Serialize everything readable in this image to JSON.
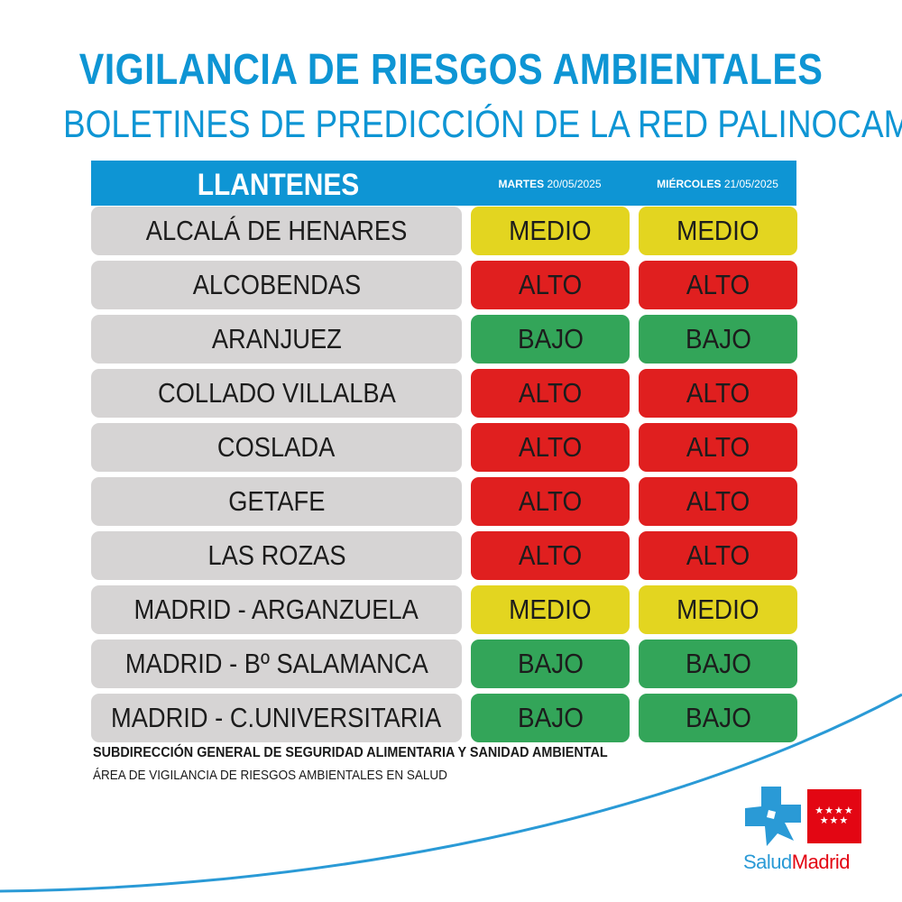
{
  "header": {
    "title": "VIGILANCIA DE RIESGOS AMBIENTALES",
    "subtitle": "BOLETINES DE PREDICCIÓN DE LA RED PALINOCAM"
  },
  "table": {
    "pollen_type": "LLANTENES",
    "day1_name": "MARTES",
    "day1_date": "20/05/2025",
    "day2_name": "MIÉRCOLES",
    "day2_date": "21/05/2025",
    "rows": [
      {
        "station": "ALCALÁ DE HENARES",
        "day1": "MEDIO",
        "day2": "MEDIO"
      },
      {
        "station": "ALCOBENDAS",
        "day1": "ALTO",
        "day2": "ALTO"
      },
      {
        "station": "ARANJUEZ",
        "day1": "BAJO",
        "day2": "BAJO"
      },
      {
        "station": "COLLADO VILLALBA",
        "day1": "ALTO",
        "day2": "ALTO"
      },
      {
        "station": "COSLADA",
        "day1": "ALTO",
        "day2": "ALTO"
      },
      {
        "station": "GETAFE",
        "day1": "ALTO",
        "day2": "ALTO"
      },
      {
        "station": "LAS ROZAS",
        "day1": "ALTO",
        "day2": "ALTO"
      },
      {
        "station": "MADRID - ARGANZUELA",
        "day1": "MEDIO",
        "day2": "MEDIO"
      },
      {
        "station": "MADRID - Bº SALAMANCA",
        "day1": "BAJO",
        "day2": "BAJO"
      },
      {
        "station": "MADRID - C.UNIVERSITARIA",
        "day1": "BAJO",
        "day2": "BAJO"
      }
    ]
  },
  "level_colors": {
    "BAJO": "#33a559",
    "MEDIO": "#e3d520",
    "ALTO": "#e01f1f"
  },
  "footer": {
    "line1": "SUBDIRECCIÓN GENERAL DE SEGURIDAD ALIMENTARIA Y SANIDAD AMBIENTAL",
    "line2": "ÁREA DE VIGILANCIA DE RIESGOS AMBIENTALES EN SALUD"
  },
  "logo": {
    "text_part1": "Salud",
    "text_part2": "Madrid",
    "icon": "salud-madrid-cross-icon",
    "flag_stars": "★★★★\n★★★"
  }
}
